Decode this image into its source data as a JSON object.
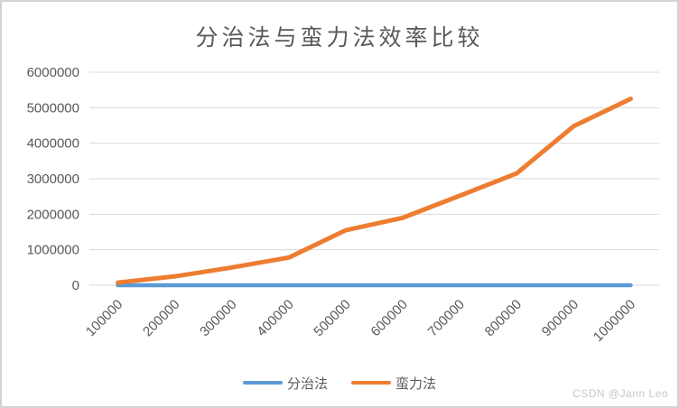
{
  "title": "分治法与蛮力法效率比较",
  "watermark": "CSDN @Jann Leo",
  "colors": {
    "divide_series": "#5B9BD5",
    "brute_series": "#ED7D31",
    "grid": "#D9D9D9",
    "text": "#595959",
    "border": "#D2D2D2",
    "watermark": "#C6C6C6"
  },
  "legend": {
    "items": [
      "分治法",
      "蛮力法"
    ]
  },
  "chart_data": {
    "type": "line",
    "title": "分治法与蛮力法效率比较",
    "categories": [
      100000,
      200000,
      300000,
      400000,
      500000,
      600000,
      700000,
      800000,
      900000,
      1000000
    ],
    "series": [
      {
        "name": "分治法",
        "color": "#5B9BD5",
        "values": [
          0,
          0,
          0,
          0,
          0,
          0,
          0,
          0,
          0,
          0
        ]
      },
      {
        "name": "蛮力法",
        "color": "#ED7D31",
        "values": [
          75000,
          250000,
          500000,
          780000,
          1550000,
          1900000,
          2520000,
          3150000,
          4480000,
          5250000
        ]
      }
    ],
    "xlabel": "",
    "ylabel": "",
    "ylim": [
      0,
      6000000
    ],
    "y_ticks": [
      0,
      1000000,
      2000000,
      3000000,
      4000000,
      5000000,
      6000000
    ],
    "grid": true,
    "x_tick_rotation": -45,
    "legend_position": "bottom"
  }
}
